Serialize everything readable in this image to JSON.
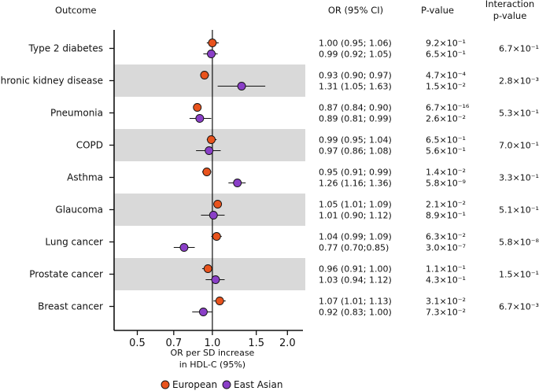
{
  "chart_data": {
    "type": "forest",
    "scale": "log",
    "reference_line": 1.0,
    "xlim": [
      0.45,
      2.1
    ],
    "xticks": [
      0.5,
      0.7,
      1.0,
      1.5,
      2.0
    ],
    "xtick_labels": [
      "0.5",
      "0.7",
      "1.0",
      "1.5",
      "2.0"
    ],
    "xlabel_line1": "OR per SD increase",
    "xlabel_line2": "in HDL-C (95%)",
    "headers": {
      "outcome": "Outcome",
      "or": "OR (95% CI)",
      "pvalue": "P-value",
      "interaction_line1": "Interaction",
      "interaction_line2": "p-value"
    },
    "legend": [
      {
        "name": "European",
        "color": "#e8531d"
      },
      {
        "name": "East Asian",
        "color": "#8a3fc7"
      }
    ],
    "rows": [
      {
        "outcome": "Type 2 diabetes",
        "shaded": false,
        "european": {
          "or": 1.0,
          "lo": 0.95,
          "hi": 1.06,
          "ci_text": "1.00 (0.95; 1.06)",
          "p": "9.2×10⁻¹"
        },
        "east_asian": {
          "or": 0.99,
          "lo": 0.92,
          "hi": 1.05,
          "ci_text": "0.99 (0.92; 1.05)",
          "p": "6.5×10⁻¹"
        },
        "interaction_p": "6.7×10⁻¹"
      },
      {
        "outcome": "Chronic kidney disease",
        "shaded": true,
        "european": {
          "or": 0.93,
          "lo": 0.9,
          "hi": 0.97,
          "ci_text": "0.93 (0.90; 0.97)",
          "p": "4.7×10⁻⁴"
        },
        "east_asian": {
          "or": 1.31,
          "lo": 1.05,
          "hi": 1.63,
          "ci_text": "1.31 (1.05; 1.63)",
          "p": "1.5×10⁻²"
        },
        "interaction_p": "2.8×10⁻³"
      },
      {
        "outcome": "Pneumonia",
        "shaded": false,
        "european": {
          "or": 0.87,
          "lo": 0.84,
          "hi": 0.9,
          "ci_text": "0.87 (0.84; 0.90)",
          "p": "6.7×10⁻¹⁶"
        },
        "east_asian": {
          "or": 0.89,
          "lo": 0.81,
          "hi": 0.99,
          "ci_text": "0.89 (0.81; 0.99)",
          "p": "2.6×10⁻²"
        },
        "interaction_p": "5.3×10⁻¹"
      },
      {
        "outcome": "COPD",
        "shaded": true,
        "european": {
          "or": 0.99,
          "lo": 0.95,
          "hi": 1.04,
          "ci_text": "0.99 (0.95; 1.04)",
          "p": "6.5×10⁻¹"
        },
        "east_asian": {
          "or": 0.97,
          "lo": 0.86,
          "hi": 1.08,
          "ci_text": "0.97 (0.86; 1.08)",
          "p": "5.6×10⁻¹"
        },
        "interaction_p": "7.0×10⁻¹"
      },
      {
        "outcome": "Asthma",
        "shaded": false,
        "european": {
          "or": 0.95,
          "lo": 0.91,
          "hi": 0.99,
          "ci_text": "0.95 (0.91; 0.99)",
          "p": "1.4×10⁻²"
        },
        "east_asian": {
          "or": 1.26,
          "lo": 1.16,
          "hi": 1.36,
          "ci_text": "1.26 (1.16; 1.36)",
          "p": "5.8×10⁻⁹"
        },
        "interaction_p": "3.3×10⁻¹⁰"
      },
      {
        "outcome": "Glaucoma",
        "shaded": true,
        "european": {
          "or": 1.05,
          "lo": 1.01,
          "hi": 1.09,
          "ci_text": "1.05 (1.01; 1.09)",
          "p": "2.1×10⁻²"
        },
        "east_asian": {
          "or": 1.01,
          "lo": 0.9,
          "hi": 1.12,
          "ci_text": "1.01 (0.90; 1.12)",
          "p": "8.9×10⁻¹"
        },
        "interaction_p": "5.1×10⁻¹"
      },
      {
        "outcome": "Lung cancer",
        "shaded": false,
        "european": {
          "or": 1.04,
          "lo": 0.99,
          "hi": 1.09,
          "ci_text": "1.04 (0.99; 1.09)",
          "p": "6.3×10⁻²"
        },
        "east_asian": {
          "or": 0.77,
          "lo": 0.7,
          "hi": 0.85,
          "ci_text": "0.77 (0.70;0.85)",
          "p": "3.0×10⁻⁷"
        },
        "interaction_p": "5.8×10⁻⁸"
      },
      {
        "outcome": "Prostate cancer",
        "shaded": true,
        "european": {
          "or": 0.96,
          "lo": 0.91,
          "hi": 1.0,
          "ci_text": "0.96 (0.91; 1.00)",
          "p": "1.1×10⁻¹"
        },
        "east_asian": {
          "or": 1.03,
          "lo": 0.94,
          "hi": 1.12,
          "ci_text": "1.03 (0.94; 1.12)",
          "p": "4.3×10⁻¹"
        },
        "interaction_p": "1.5×10⁻¹"
      },
      {
        "outcome": "Breast cancer",
        "shaded": false,
        "european": {
          "or": 1.07,
          "lo": 1.01,
          "hi": 1.13,
          "ci_text": "1.07 (1.01; 1.13)",
          "p": "3.1×10⁻²"
        },
        "east_asian": {
          "or": 0.92,
          "lo": 0.83,
          "hi": 1.0,
          "ci_text": "0.92 (0.83; 1.00)",
          "p": "7.3×10⁻²"
        },
        "interaction_p": "6.7×10⁻³"
      }
    ]
  }
}
